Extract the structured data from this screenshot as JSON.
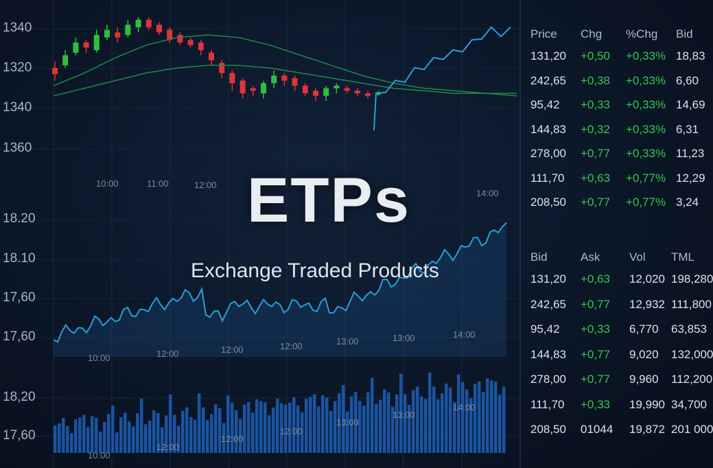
{
  "title": "ETPs",
  "subtitle": "Exchange Traded Products",
  "colors": {
    "up": "#2fbf3f",
    "down": "#e0343a",
    "line": "#2a9fd6",
    "ma": "#1f8a4a",
    "bars": "#1e5fb8",
    "green_text": "#35c94a"
  },
  "charts": {
    "candles": {
      "y_labels": [
        "1340",
        "1320",
        "1340",
        "1360"
      ],
      "x_labels": [
        "10:00",
        "11:00",
        "12:00",
        "14:00"
      ],
      "ohlc": [
        [
          60,
          55,
          65,
          50
        ],
        [
          62,
          70,
          74,
          60
        ],
        [
          72,
          80,
          84,
          70
        ],
        [
          80,
          76,
          82,
          72
        ],
        [
          74,
          86,
          90,
          72
        ],
        [
          84,
          90,
          94,
          82
        ],
        [
          88,
          84,
          92,
          80
        ],
        [
          86,
          94,
          98,
          84
        ],
        [
          92,
          98,
          100,
          88
        ],
        [
          98,
          92,
          100,
          90
        ],
        [
          94,
          88,
          96,
          86
        ],
        [
          90,
          82,
          92,
          80
        ],
        [
          86,
          80,
          88,
          78
        ],
        [
          82,
          78,
          84,
          76
        ],
        [
          80,
          74,
          82,
          70
        ],
        [
          72,
          66,
          74,
          62
        ],
        [
          64,
          56,
          66,
          52
        ],
        [
          56,
          48,
          58,
          42
        ],
        [
          50,
          40,
          52,
          36
        ],
        [
          44,
          42,
          46,
          38
        ],
        [
          40,
          48,
          50,
          36
        ],
        [
          48,
          54,
          58,
          44
        ],
        [
          54,
          50,
          56,
          46
        ],
        [
          52,
          46,
          54,
          42
        ],
        [
          46,
          40,
          48,
          38
        ],
        [
          42,
          38,
          44,
          34
        ],
        [
          38,
          44,
          46,
          34
        ],
        [
          44,
          46,
          48,
          40
        ],
        [
          44,
          42,
          46,
          40
        ],
        [
          42,
          40,
          44,
          38
        ],
        [
          40,
          38,
          42,
          36
        ],
        [
          40,
          40,
          42,
          38
        ]
      ],
      "ma_fast": [
        46,
        56,
        68,
        78,
        84,
        86,
        84,
        78,
        70,
        62,
        54,
        48,
        44,
        42,
        40,
        38
      ],
      "ma_slow": [
        38,
        44,
        50,
        56,
        60,
        62,
        62,
        60,
        56,
        52,
        48,
        44,
        42,
        40,
        40,
        40
      ],
      "breakout_line": [
        38,
        44,
        48,
        52,
        58,
        62,
        66,
        70,
        72,
        76,
        80,
        86,
        90,
        88,
        90
      ]
    },
    "line": {
      "y_labels": [
        "18.20",
        "18.10",
        "17,60",
        "17,60"
      ],
      "x_labels": [
        "10:00",
        "12:00",
        "12:00",
        "12:00",
        "13:00",
        "13:00",
        "14:00"
      ]
    },
    "volume": {
      "y_labels": [
        "18,20",
        "17,60"
      ],
      "x_labels": [
        "10:00",
        "12:00",
        "12:00",
        "12:00",
        "13:00",
        "13:00",
        "14:00"
      ]
    }
  },
  "quotes": {
    "headers": [
      "Price",
      "Chg",
      "%Chg",
      "Bid"
    ],
    "rows": [
      [
        "131,20",
        "+0,50",
        "+0,33%",
        "18,83"
      ],
      [
        "242,65",
        "+0,38",
        "+0,33%",
        "6,60"
      ],
      [
        "95,42",
        "+0,33",
        "+0,33%",
        "14,69"
      ],
      [
        "144,83",
        "+0,32",
        "+0,33%",
        "6,31"
      ],
      [
        "278,00",
        "+0,77",
        "+0,33%",
        "11,23"
      ],
      [
        "111,70",
        "+0,63",
        "+0,77%",
        "12,29"
      ],
      [
        "208,50",
        "+0,77",
        "+0,77%",
        "3,24"
      ]
    ]
  },
  "book": {
    "headers": [
      "Bid",
      "Ask",
      "Vol",
      "TML"
    ],
    "rows": [
      [
        "131,20",
        "+0,63",
        "12,020",
        "198,280"
      ],
      [
        "242,65",
        "+0,77",
        "12,932",
        "111,800"
      ],
      [
        "95,42",
        "+0,33",
        "6,770",
        "63,853"
      ],
      [
        "144,83",
        "+0,77",
        "9,020",
        "132,000"
      ],
      [
        "278,00",
        "+0,77",
        "9,960",
        "112,200"
      ],
      [
        "111,70",
        "+0,33",
        "19,990",
        "34,700"
      ],
      [
        "208,50",
        "01044",
        "19,872",
        "201 000"
      ]
    ]
  }
}
